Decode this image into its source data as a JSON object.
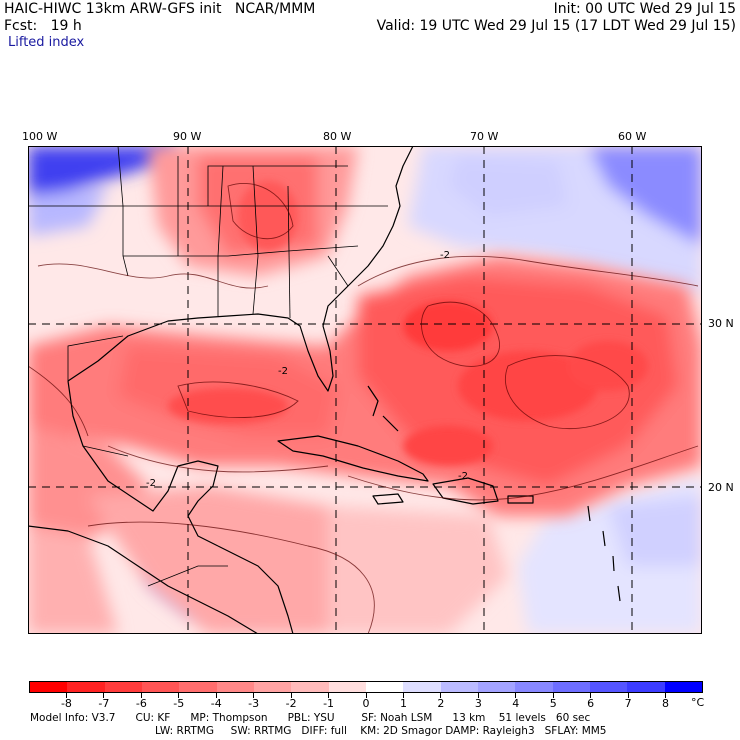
{
  "header": {
    "line1_left": "HAIC-HIWC 13km ARW-GFS init   NCAR/MMM",
    "line1_right": "Init: 00 UTC Wed 29 Jul 15",
    "line2_left": "Fcst:   19 h",
    "line2_right": "Valid: 19 UTC Wed 29 Jul 15 (17 LDT Wed 29 Jul 15)",
    "field_name": "Lifted index"
  },
  "map": {
    "longitude_labels": [
      "100 W",
      "90 W",
      "80 W",
      "70 W",
      "60 W"
    ],
    "latitude_labels": [
      "30 N",
      "20 N"
    ],
    "contour_labels": [
      "-2",
      "-2",
      "-2",
      "-2"
    ],
    "colors": {
      "land_border": "#000000",
      "grid": "#000000",
      "unstable_core": "#f03c3c",
      "stable_core": "#3c3cff",
      "neutral": "#ffffff"
    }
  },
  "colorbar": {
    "labels": [
      "-8",
      "-7",
      "-6",
      "-5",
      "-4",
      "-3",
      "-2",
      "-1",
      "0",
      "1",
      "2",
      "3",
      "4",
      "5",
      "6",
      "7",
      "8"
    ],
    "unit": "°C",
    "colors": [
      "#ff0000",
      "#ff2222",
      "#ff3c3c",
      "#ff5555",
      "#ff6e6e",
      "#ff8888",
      "#ffa3a3",
      "#ffbbbb",
      "#ffdede",
      "#ffffff",
      "#dedeff",
      "#bbbbff",
      "#a3a3ff",
      "#8888ff",
      "#6e6eff",
      "#5555ff",
      "#3c3cff",
      "#0000ff"
    ]
  },
  "footer": {
    "line1": "Model Info: V3.7      CU: KF      MP: Thompson      PBL: YSU        SF: Noah LSM      13 km    51 levels   60 sec",
    "line2": "LW: RRTMG     SW: RRTMG   DIFF: full    KM: 2D Smagor DAMP: Rayleigh3   SFLAY: MM5"
  }
}
